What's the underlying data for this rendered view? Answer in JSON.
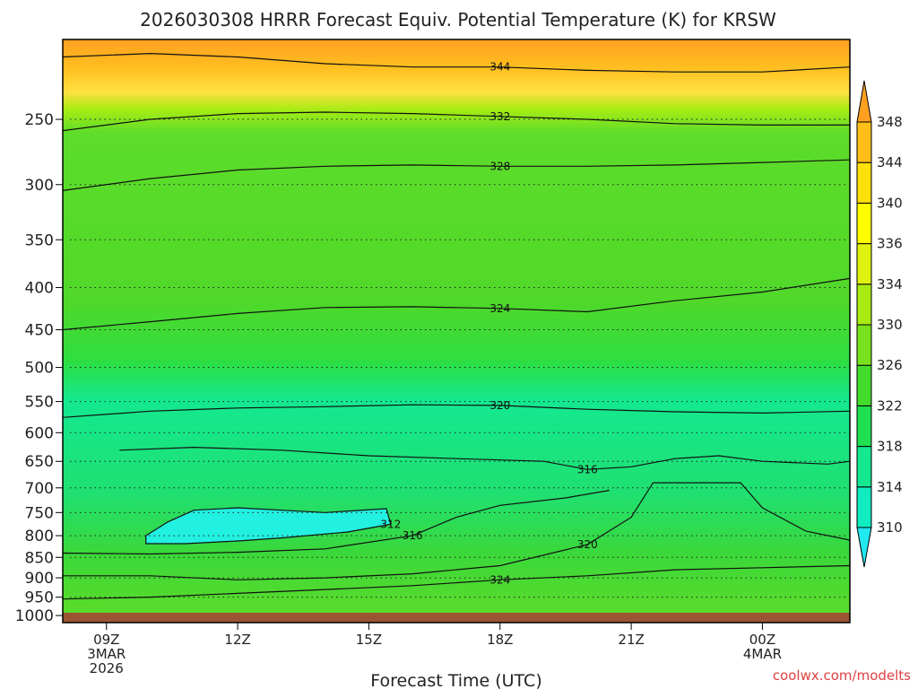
{
  "chart_data": {
    "type": "contour",
    "title": "2026030308 HRRR Forecast Equiv. Potential Temperature (K) for KRSW",
    "xlabel": "Forecast Time (UTC)",
    "ylabel": "",
    "y_axis": {
      "scale": "log",
      "ylim": [
        1020,
        200
      ],
      "ticks": [
        250,
        300,
        350,
        400,
        450,
        500,
        550,
        600,
        650,
        700,
        750,
        800,
        850,
        900,
        950,
        1000
      ]
    },
    "x_axis": {
      "start": "2026-03-03 08Z",
      "ticks": [
        {
          "hour": 9,
          "line1": "09Z",
          "line2": "3MAR",
          "line3": "2026"
        },
        {
          "hour": 12,
          "line1": "12Z",
          "line2": "",
          "line3": ""
        },
        {
          "hour": 15,
          "line1": "15Z",
          "line2": "",
          "line3": ""
        },
        {
          "hour": 18,
          "line1": "18Z",
          "line2": "",
          "line3": ""
        },
        {
          "hour": 21,
          "line1": "21Z",
          "line2": "",
          "line3": ""
        },
        {
          "hour": 24,
          "line1": "00Z",
          "line2": "4MAR",
          "line3": ""
        }
      ],
      "xlim": [
        8,
        26
      ]
    },
    "colorbar": {
      "levels": [
        310,
        314,
        318,
        322,
        326,
        330,
        334,
        336,
        340,
        344,
        348
      ],
      "labels": [
        "310",
        "314",
        "318",
        "322",
        "326",
        "330",
        "334",
        "336",
        "340",
        "344",
        "348"
      ],
      "colors": [
        "#22e8f0",
        "#10ecc0",
        "#14e890",
        "#20e050",
        "#44dc2c",
        "#78e01c",
        "#a8ec14",
        "#e0f210",
        "#ffff00",
        "#ffe00a",
        "#ffbe18",
        "#ffa020"
      ]
    },
    "contours": [
      {
        "level": 312,
        "label": "312",
        "points": [
          [
            9.9,
            800
          ],
          [
            10.4,
            770
          ],
          [
            11,
            745
          ],
          [
            12,
            740
          ],
          [
            13,
            745
          ],
          [
            14,
            750
          ],
          [
            15.4,
            742
          ],
          [
            15.5,
            775
          ],
          [
            14.5,
            792
          ],
          [
            13,
            805
          ],
          [
            12,
            812
          ],
          [
            10.8,
            818
          ],
          [
            9.9,
            818
          ],
          [
            9.9,
            800
          ]
        ]
      },
      {
        "level": 316,
        "label": "316",
        "points": [
          [
            9.3,
            630
          ],
          [
            11,
            625
          ],
          [
            13,
            630
          ],
          [
            15,
            640
          ],
          [
            17,
            645
          ],
          [
            19,
            650
          ],
          [
            20,
            665
          ],
          [
            21,
            660
          ],
          [
            22,
            645
          ],
          [
            23,
            640
          ],
          [
            24,
            650
          ],
          [
            25.5,
            655
          ],
          [
            26,
            650
          ]
        ]
      },
      {
        "level": 316,
        "label": "316",
        "points": [
          [
            8,
            840
          ],
          [
            10,
            842
          ],
          [
            12,
            838
          ],
          [
            14,
            830
          ],
          [
            16,
            800
          ],
          [
            17,
            760
          ],
          [
            18,
            735
          ],
          [
            19.5,
            720
          ],
          [
            20.5,
            705
          ]
        ]
      },
      {
        "level": 320,
        "label": "320",
        "points": [
          [
            8,
            575
          ],
          [
            10,
            565
          ],
          [
            12,
            560
          ],
          [
            14,
            558
          ],
          [
            16,
            555
          ],
          [
            18,
            556
          ],
          [
            20,
            562
          ],
          [
            22,
            566
          ],
          [
            24,
            568
          ],
          [
            26,
            565
          ]
        ]
      },
      {
        "level": 320,
        "label": "320",
        "points": [
          [
            8,
            895
          ],
          [
            10,
            895
          ],
          [
            12,
            905
          ],
          [
            14,
            900
          ],
          [
            16,
            890
          ],
          [
            18,
            870
          ],
          [
            20,
            820
          ],
          [
            21,
            760
          ],
          [
            21.5,
            690
          ],
          [
            23.5,
            690
          ],
          [
            24,
            740
          ],
          [
            25,
            790
          ],
          [
            26,
            810
          ]
        ]
      },
      {
        "level": 324,
        "label": "324",
        "points": [
          [
            8,
            450
          ],
          [
            10,
            440
          ],
          [
            12,
            430
          ],
          [
            14,
            423
          ],
          [
            16,
            422
          ],
          [
            18,
            424
          ],
          [
            20,
            428
          ],
          [
            22,
            415
          ],
          [
            24,
            405
          ],
          [
            26,
            390
          ]
        ]
      },
      {
        "level": 324,
        "label": "324",
        "points": [
          [
            8,
            955
          ],
          [
            10,
            950
          ],
          [
            12,
            940
          ],
          [
            14,
            930
          ],
          [
            16,
            920
          ],
          [
            18,
            905
          ],
          [
            20,
            895
          ],
          [
            22,
            880
          ],
          [
            24,
            875
          ],
          [
            26,
            870
          ]
        ]
      },
      {
        "level": 328,
        "label": "328",
        "points": [
          [
            8,
            305
          ],
          [
            10,
            295
          ],
          [
            12,
            288
          ],
          [
            14,
            285
          ],
          [
            16,
            284
          ],
          [
            18,
            285
          ],
          [
            20,
            285
          ],
          [
            22,
            284
          ],
          [
            24,
            282
          ],
          [
            26,
            280
          ]
        ]
      },
      {
        "level": 332,
        "label": "332",
        "points": [
          [
            8,
            258
          ],
          [
            10,
            250
          ],
          [
            12,
            246
          ],
          [
            14,
            245
          ],
          [
            16,
            246
          ],
          [
            18,
            248
          ],
          [
            20,
            250
          ],
          [
            22,
            253
          ],
          [
            24,
            254
          ],
          [
            26,
            254
          ]
        ]
      },
      {
        "level": 344,
        "label": "344",
        "points": [
          [
            8,
            210
          ],
          [
            10,
            208
          ],
          [
            12,
            210
          ],
          [
            14,
            214
          ],
          [
            16,
            216
          ],
          [
            18,
            216
          ],
          [
            20,
            218
          ],
          [
            22,
            219
          ],
          [
            24,
            219
          ],
          [
            26,
            216
          ]
        ]
      }
    ]
  },
  "credit": "coolwx.com/modelts"
}
